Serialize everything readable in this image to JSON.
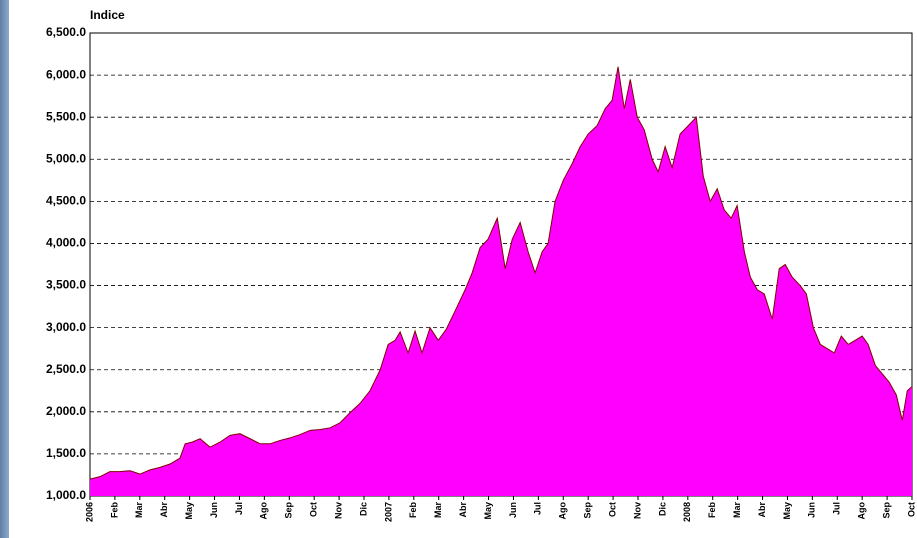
{
  "chart_data": {
    "type": "area",
    "ylabel": "Indice",
    "color": "#ff00ff",
    "line_color": "#800000",
    "year_label_color": "#ff0000",
    "grid": true,
    "xlim": [
      0,
      33
    ],
    "ylim": [
      1000,
      6500
    ],
    "yticks": [
      {
        "value": 1000,
        "label": "1,000.0"
      },
      {
        "value": 1500,
        "label": "1,500.0"
      },
      {
        "value": 2000,
        "label": "2,000.0"
      },
      {
        "value": 2500,
        "label": "2,500.0"
      },
      {
        "value": 3000,
        "label": "3,000.0"
      },
      {
        "value": 3500,
        "label": "3,500.0"
      },
      {
        "value": 4000,
        "label": "4,000.0"
      },
      {
        "value": 4500,
        "label": "4,500.0"
      },
      {
        "value": 5000,
        "label": "5,000.0"
      },
      {
        "value": 5500,
        "label": "5,500.0"
      },
      {
        "value": 6000,
        "label": "6,000.0"
      },
      {
        "value": 6500,
        "label": "6,500.0"
      }
    ],
    "xticks": [
      {
        "value": 0,
        "label": "2006"
      },
      {
        "value": 1,
        "label": "Feb"
      },
      {
        "value": 2,
        "label": "Mar"
      },
      {
        "value": 3,
        "label": "Abr"
      },
      {
        "value": 4,
        "label": "May"
      },
      {
        "value": 5,
        "label": "Jun"
      },
      {
        "value": 6,
        "label": "Jul"
      },
      {
        "value": 7,
        "label": "Ago"
      },
      {
        "value": 8,
        "label": "Sep"
      },
      {
        "value": 9,
        "label": "Oct"
      },
      {
        "value": 10,
        "label": "Nov"
      },
      {
        "value": 11,
        "label": "Dic"
      },
      {
        "value": 12,
        "label": "2007"
      },
      {
        "value": 13,
        "label": "Feb"
      },
      {
        "value": 14,
        "label": "Mar"
      },
      {
        "value": 15,
        "label": "Abr"
      },
      {
        "value": 16,
        "label": "May"
      },
      {
        "value": 17,
        "label": "Jun"
      },
      {
        "value": 18,
        "label": "Jul"
      },
      {
        "value": 19,
        "label": "Ago"
      },
      {
        "value": 20,
        "label": "Sep"
      },
      {
        "value": 21,
        "label": "Oct"
      },
      {
        "value": 22,
        "label": "Nov"
      },
      {
        "value": 23,
        "label": "Dic"
      },
      {
        "value": 24,
        "label": "2008"
      },
      {
        "value": 25,
        "label": "Feb"
      },
      {
        "value": 26,
        "label": "Mar"
      },
      {
        "value": 27,
        "label": "Abr"
      },
      {
        "value": 28,
        "label": "May"
      },
      {
        "value": 29,
        "label": "Jun"
      },
      {
        "value": 30,
        "label": "Jul"
      },
      {
        "value": 31,
        "label": "Ago"
      },
      {
        "value": 32,
        "label": "Sep"
      },
      {
        "value": 33,
        "label": "Oct"
      }
    ],
    "x": [
      0,
      0.4,
      0.8,
      1.2,
      1.61,
      2.01,
      2.41,
      2.81,
      3.21,
      3.61,
      3.82,
      4.1,
      4.42,
      4.82,
      5.22,
      5.62,
      6.02,
      6.43,
      6.83,
      7.23,
      7.63,
      8.03,
      8.43,
      8.84,
      9.24,
      9.64,
      10.04,
      10.44,
      10.84,
      11.24,
      11.65,
      11.97,
      12.25,
      12.45,
      12.77,
      13.05,
      13.33,
      13.65,
      13.98,
      14.3,
      14.66,
      15.06,
      15.34,
      15.66,
      15.98,
      16.35,
      16.67,
      16.95,
      17.27,
      17.59,
      17.87,
      18.15,
      18.39,
      18.67,
      19,
      19.36,
      19.68,
      20,
      20.36,
      20.68,
      20.96,
      21.2,
      21.45,
      21.69,
      21.97,
      22.25,
      22.57,
      22.81,
      23.09,
      23.37,
      23.69,
      24.02,
      24.34,
      24.62,
      24.9,
      25.18,
      25.46,
      25.74,
      25.98,
      26.27,
      26.51,
      26.79,
      27.07,
      27.39,
      27.67,
      27.91,
      28.19,
      28.51,
      28.76,
      29.04,
      29.32,
      29.6,
      29.88,
      30.16,
      30.44,
      30.72,
      31,
      31.24,
      31.53,
      31.81,
      32.09,
      32.37,
      32.61,
      32.81,
      33
    ],
    "values": [
      1200,
      1230,
      1290,
      1290,
      1300,
      1260,
      1310,
      1340,
      1380,
      1450,
      1620,
      1640,
      1680,
      1580,
      1640,
      1720,
      1740,
      1680,
      1620,
      1620,
      1660,
      1690,
      1730,
      1780,
      1790,
      1810,
      1870,
      1990,
      2100,
      2250,
      2500,
      2800,
      2850,
      2950,
      2700,
      2960,
      2700,
      3000,
      2850,
      2980,
      3200,
      3450,
      3650,
      3950,
      4050,
      4300,
      3700,
      4050,
      4250,
      3900,
      3650,
      3900,
      4000,
      4500,
      4750,
      4950,
      5150,
      5300,
      5400,
      5600,
      5700,
      6100,
      5600,
      5950,
      5500,
      5350,
      5000,
      4850,
      5150,
      4900,
      5300,
      5400,
      5500,
      4800,
      4500,
      4650,
      4400,
      4300,
      4450,
      3900,
      3600,
      3450,
      3400,
      3100,
      3700,
      3750,
      3600,
      3500,
      3400,
      3000,
      2800,
      2750,
      2700,
      2900,
      2800,
      2850,
      2900,
      2800,
      2550,
      2450,
      2350,
      2200,
      1900,
      2250,
      2300
    ]
  }
}
